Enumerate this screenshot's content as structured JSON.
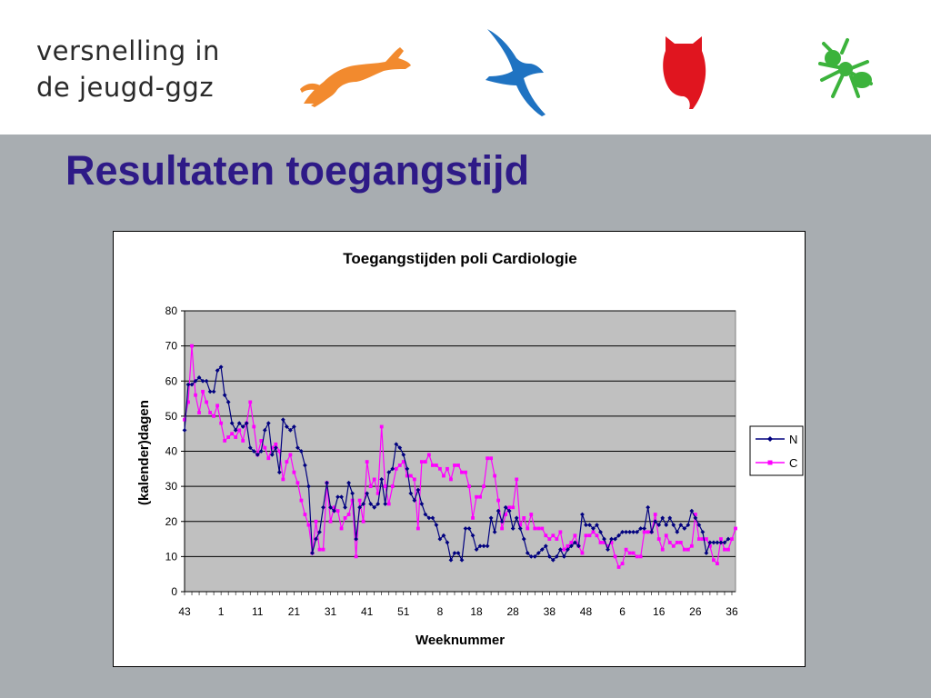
{
  "header": {
    "logo_line1": "versnelling in",
    "logo_line2": "de jeugd-ggz",
    "icons": [
      "hare-icon",
      "swallow-icon",
      "owl-icon",
      "ant-icon"
    ],
    "icon_colors": {
      "hare": "#f28a2e",
      "swallow": "#1f73c2",
      "owl": "#e0151f",
      "ant": "#3cb33c"
    }
  },
  "slide": {
    "title": "Resultaten toegangstijd"
  },
  "chart_data": {
    "type": "line",
    "title": "Toegangstijden poli Cardiologie",
    "xlabel": "Weeknummer",
    "ylabel": "(kalender)dagen",
    "ylim": [
      0,
      80
    ],
    "yticks": [
      0,
      10,
      20,
      30,
      40,
      50,
      60,
      70,
      80
    ],
    "xtick_labels": [
      "43",
      "1",
      "11",
      "21",
      "31",
      "41",
      "51",
      "8",
      "18",
      "28",
      "38",
      "48",
      "6",
      "16",
      "26",
      "36"
    ],
    "xtick_every": 10,
    "plot_background": "#c0c0c0",
    "grid": true,
    "legend_position": "right",
    "series": [
      {
        "name": "N",
        "color": "#00007f",
        "marker": "diamond",
        "values": [
          46,
          59,
          59,
          60,
          61,
          60,
          60,
          57,
          57,
          63,
          64,
          56,
          54,
          48,
          46,
          48,
          47,
          48,
          41,
          40,
          39,
          40,
          46,
          48,
          39,
          41,
          34,
          49,
          47,
          46,
          47,
          41,
          40,
          36,
          30,
          11,
          15,
          17,
          24,
          31,
          24,
          23,
          27,
          27,
          24,
          31,
          28,
          15,
          24,
          25,
          28,
          25,
          24,
          25,
          32,
          25,
          34,
          35,
          42,
          41,
          39,
          35,
          28,
          26,
          29,
          25,
          22,
          21,
          21,
          19,
          15,
          16,
          14,
          9,
          11,
          11,
          9,
          18,
          18,
          16,
          12,
          13,
          13,
          13,
          21,
          17,
          23,
          20,
          24,
          23,
          18,
          21,
          18,
          15,
          11,
          10,
          10,
          11,
          12,
          13,
          10,
          9,
          10,
          12,
          10,
          12,
          13,
          14,
          13,
          22,
          19,
          19,
          18,
          19,
          17,
          15,
          12,
          15,
          15,
          16,
          17,
          17,
          17,
          17,
          17,
          18,
          18,
          24,
          17,
          20,
          19,
          21,
          19,
          21,
          19,
          17,
          19,
          18,
          19,
          23,
          21,
          19,
          17,
          11,
          14,
          14,
          14,
          14,
          14,
          15
        ]
      },
      {
        "name": "C",
        "color": "#ff00ff",
        "marker": "square",
        "values": [
          49,
          54,
          70,
          56,
          51,
          57,
          54,
          51,
          50,
          53,
          48,
          43,
          44,
          45,
          44,
          46,
          43,
          48,
          54,
          47,
          39,
          43,
          41,
          38,
          41,
          42,
          40,
          32,
          37,
          39,
          34,
          31,
          26,
          22,
          19,
          11,
          20,
          12,
          12,
          31,
          20,
          24,
          23,
          18,
          21,
          22,
          26,
          10,
          26,
          20,
          37,
          30,
          32,
          28,
          47,
          30,
          25,
          30,
          35,
          36,
          37,
          33,
          33,
          32,
          18,
          37,
          37,
          39,
          36,
          36,
          35,
          33,
          35,
          32,
          36,
          36,
          34,
          34,
          30,
          21,
          27,
          27,
          30,
          38,
          38,
          33,
          26,
          18,
          22,
          24,
          24,
          32,
          19,
          21,
          18,
          22,
          18,
          18,
          18,
          16,
          15,
          16,
          15,
          17,
          12,
          13,
          14,
          16,
          13,
          11,
          16,
          16,
          17,
          16,
          14,
          14,
          13,
          14,
          10,
          7,
          8,
          12,
          11,
          11,
          10,
          10,
          17,
          17,
          17,
          22,
          15,
          12,
          16,
          14,
          13,
          14,
          14,
          12,
          12,
          13,
          22,
          15,
          15,
          15,
          13,
          9,
          8,
          15,
          12,
          12,
          15,
          18
        ]
      }
    ]
  }
}
